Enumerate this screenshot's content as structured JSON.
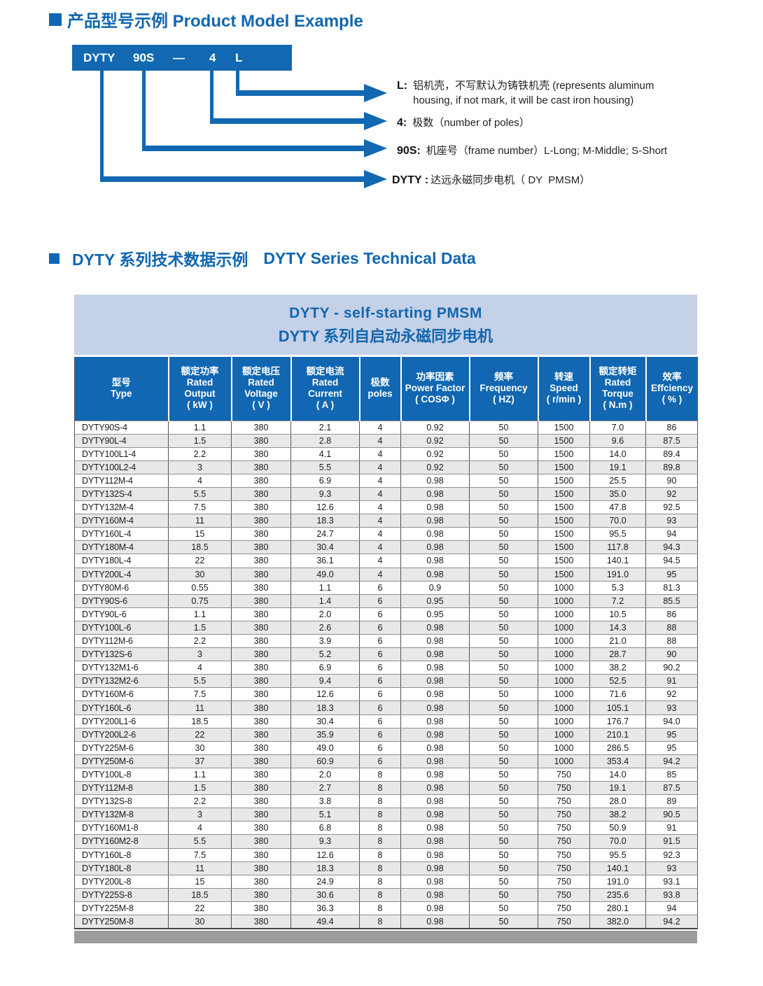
{
  "section1": {
    "title_zh": "产品型号示例",
    "title_en": "Product Model Example"
  },
  "diagram": {
    "box_tokens": [
      "DYTY",
      "90S",
      "—",
      "4",
      "L"
    ],
    "callouts": [
      {
        "prefix": "L:",
        "line1": "铝机壳，不写默认为铸铁机壳 (represents aluminum",
        "line2": "housing, if not mark, it will be cast iron housing)"
      },
      {
        "prefix": "4:",
        "line1": "极数（number of poles）"
      },
      {
        "prefix": "90S:",
        "line1": "机座号（frame number）L-Long; M-Middle; S-Short"
      },
      {
        "prefix": "DYTY :",
        "line1": "达远永磁同步电机（ DY  PMSM）"
      }
    ]
  },
  "section2": {
    "title_zh": "DYTY 系列技术数据示例",
    "title_en": "DYTY Series Technical Data"
  },
  "table": {
    "title_line1": "DYTY - self-starting PMSM",
    "title_line2": "DYTY 系列自启动永磁同步电机",
    "columns": [
      [
        "型号",
        "Type"
      ],
      [
        "额定功率",
        "Rated",
        "Output",
        "( kW )"
      ],
      [
        "额定电压",
        "Rated",
        "Voltage",
        "( V )"
      ],
      [
        "额定电流",
        "Rated",
        "Current",
        "( A )"
      ],
      [
        "极数",
        "poles"
      ],
      [
        "功率因素",
        "Power Factor",
        "( COSΦ )"
      ],
      [
        "频率",
        "Frequency",
        "( HZ)"
      ],
      [
        "转速",
        "Speed",
        "( r/min )"
      ],
      [
        "额定转矩",
        "Rated",
        "Torque",
        "( N.m )"
      ],
      [
        "效率",
        "Effciency",
        "( % )"
      ]
    ],
    "rows": [
      [
        "DYTY90S-4",
        "1.1",
        "380",
        "2.1",
        "4",
        "0.92",
        "50",
        "1500",
        "7.0",
        "86"
      ],
      [
        "DYTY90L-4",
        "1.5",
        "380",
        "2.8",
        "4",
        "0.92",
        "50",
        "1500",
        "9.6",
        "87.5"
      ],
      [
        "DYTY100L1-4",
        "2.2",
        "380",
        "4.1",
        "4",
        "0.92",
        "50",
        "1500",
        "14.0",
        "89.4"
      ],
      [
        "DYTY100L2-4",
        "3",
        "380",
        "5.5",
        "4",
        "0.92",
        "50",
        "1500",
        "19.1",
        "89.8"
      ],
      [
        "DYTY112M-4",
        "4",
        "380",
        "6.9",
        "4",
        "0.98",
        "50",
        "1500",
        "25.5",
        "90"
      ],
      [
        "DYTY132S-4",
        "5.5",
        "380",
        "9.3",
        "4",
        "0.98",
        "50",
        "1500",
        "35.0",
        "92"
      ],
      [
        "DYTY132M-4",
        "7.5",
        "380",
        "12.6",
        "4",
        "0.98",
        "50",
        "1500",
        "47.8",
        "92.5"
      ],
      [
        "DYTY160M-4",
        "11",
        "380",
        "18.3",
        "4",
        "0.98",
        "50",
        "1500",
        "70.0",
        "93"
      ],
      [
        "DYTY160L-4",
        "15",
        "380",
        "24.7",
        "4",
        "0.98",
        "50",
        "1500",
        "95.5",
        "94"
      ],
      [
        "DYTY180M-4",
        "18.5",
        "380",
        "30.4",
        "4",
        "0.98",
        "50",
        "1500",
        "117.8",
        "94.3"
      ],
      [
        "DYTY180L-4",
        "22",
        "380",
        "36.1",
        "4",
        "0.98",
        "50",
        "1500",
        "140.1",
        "94.5"
      ],
      [
        "DYTY200L-4",
        "30",
        "380",
        "49.0",
        "4",
        "0.98",
        "50",
        "1500",
        "191.0",
        "95"
      ],
      [
        "DYTY80M-6",
        "0.55",
        "380",
        "1.1",
        "6",
        "0.9",
        "50",
        "1000",
        "5.3",
        "81.3"
      ],
      [
        "DYTY90S-6",
        "0.75",
        "380",
        "1.4",
        "6",
        "0.95",
        "50",
        "1000",
        "7.2",
        "85.5"
      ],
      [
        "DYTY90L-6",
        "1.1",
        "380",
        "2.0",
        "6",
        "0.95",
        "50",
        "1000",
        "10.5",
        "86"
      ],
      [
        "DYTY100L-6",
        "1.5",
        "380",
        "2.6",
        "6",
        "0.98",
        "50",
        "1000",
        "14.3",
        "88"
      ],
      [
        "DYTY112M-6",
        "2.2",
        "380",
        "3.9",
        "6",
        "0.98",
        "50",
        "1000",
        "21.0",
        "88"
      ],
      [
        "DYTY132S-6",
        "3",
        "380",
        "5.2",
        "6",
        "0.98",
        "50",
        "1000",
        "28.7",
        "90"
      ],
      [
        "DYTY132M1-6",
        "4",
        "380",
        "6.9",
        "6",
        "0.98",
        "50",
        "1000",
        "38.2",
        "90.2"
      ],
      [
        "DYTY132M2-6",
        "5.5",
        "380",
        "9.4",
        "6",
        "0.98",
        "50",
        "1000",
        "52.5",
        "91"
      ],
      [
        "DYTY160M-6",
        "7.5",
        "380",
        "12.6",
        "6",
        "0.98",
        "50",
        "1000",
        "71.6",
        "92"
      ],
      [
        "DYTY160L-6",
        "11",
        "380",
        "18.3",
        "6",
        "0.98",
        "50",
        "1000",
        "105.1",
        "93"
      ],
      [
        "DYTY200L1-6",
        "18.5",
        "380",
        "30.4",
        "6",
        "0.98",
        "50",
        "1000",
        "176.7",
        "94.0"
      ],
      [
        "DYTY200L2-6",
        "22",
        "380",
        "35.9",
        "6",
        "0.98",
        "50",
        "1000",
        "210.1",
        "95"
      ],
      [
        "DYTY225M-6",
        "30",
        "380",
        "49.0",
        "6",
        "0.98",
        "50",
        "1000",
        "286.5",
        "95"
      ],
      [
        "DYTY250M-6",
        "37",
        "380",
        "60.9",
        "6",
        "0.98",
        "50",
        "1000",
        "353.4",
        "94.2"
      ],
      [
        "DYTY100L-8",
        "1.1",
        "380",
        "2.0",
        "8",
        "0.98",
        "50",
        "750",
        "14.0",
        "85"
      ],
      [
        "DYTY112M-8",
        "1.5",
        "380",
        "2.7",
        "8",
        "0.98",
        "50",
        "750",
        "19.1",
        "87.5"
      ],
      [
        "DYTY132S-8",
        "2.2",
        "380",
        "3.8",
        "8",
        "0.98",
        "50",
        "750",
        "28.0",
        "89"
      ],
      [
        "DYTY132M-8",
        "3",
        "380",
        "5.1",
        "8",
        "0.98",
        "50",
        "750",
        "38.2",
        "90.5"
      ],
      [
        "DYTY160M1-8",
        "4",
        "380",
        "6.8",
        "8",
        "0.98",
        "50",
        "750",
        "50.9",
        "91"
      ],
      [
        "DYTY160M2-8",
        "5.5",
        "380",
        "9.3",
        "8",
        "0.98",
        "50",
        "750",
        "70.0",
        "91.5"
      ],
      [
        "DYTY160L-8",
        "7.5",
        "380",
        "12.6",
        "8",
        "0.98",
        "50",
        "750",
        "95.5",
        "92.3"
      ],
      [
        "DYTY180L-8",
        "11",
        "380",
        "18.3",
        "8",
        "0.98",
        "50",
        "750",
        "140.1",
        "93"
      ],
      [
        "DYTY200L-8",
        "15",
        "380",
        "24.9",
        "8",
        "0.98",
        "50",
        "750",
        "191.0",
        "93.1"
      ],
      [
        "DYTY225S-8",
        "18.5",
        "380",
        "30.6",
        "8",
        "0.98",
        "50",
        "750",
        "235.6",
        "93.8"
      ],
      [
        "DYTY225M-8",
        "22",
        "380",
        "36.3",
        "8",
        "0.98",
        "50",
        "750",
        "280.1",
        "94"
      ],
      [
        "DYTY250M-8",
        "30",
        "380",
        "49.4",
        "8",
        "0.98",
        "50",
        "750",
        "382.0",
        "94.2"
      ]
    ]
  },
  "colors": {
    "accent_blue": "#1268b1",
    "band_blue": "#c5d1e7",
    "row_alt": "#e8e8e8",
    "gray_bar": "#9c9c9c"
  }
}
